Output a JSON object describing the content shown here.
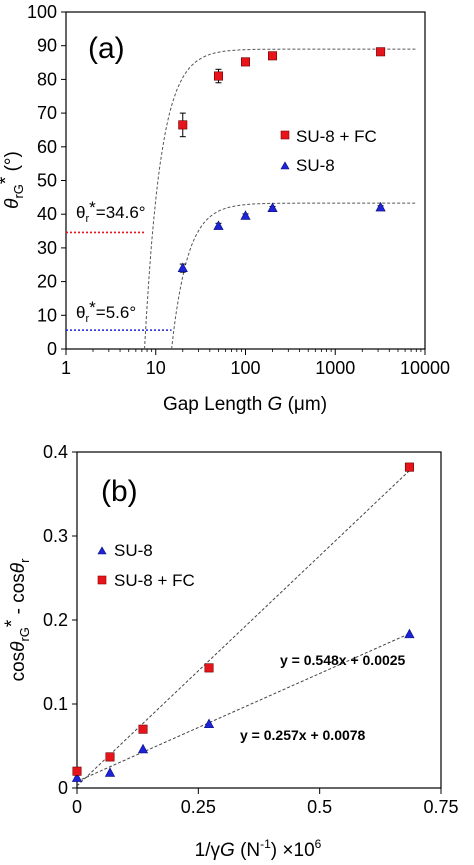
{
  "chart_data": [
    {
      "type": "scatter",
      "panel_label": "(a)",
      "xscale": "log",
      "xlim": [
        1,
        10000
      ],
      "ylim": [
        0,
        100
      ],
      "xticks": [
        "1",
        "10",
        "100",
        "1000",
        "10000"
      ],
      "yticks": [
        "0",
        "10",
        "20",
        "30",
        "40",
        "50",
        "60",
        "70",
        "80",
        "90",
        "100"
      ],
      "xlabel": "Gap Length G (μm)",
      "ylabel": "θrG* (°)",
      "grid": false,
      "legend_position": "right",
      "series": [
        {
          "name": "SU-8 + FC",
          "marker": "square",
          "color": "#e8141c",
          "x": [
            20,
            50,
            100,
            200,
            3200
          ],
          "y": [
            66.5,
            81,
            85.2,
            87,
            88.2
          ],
          "yerr": [
            3.5,
            2,
            1,
            0.6,
            0.8
          ]
        },
        {
          "name": "SU-8",
          "marker": "triangle",
          "color": "#1d23d6",
          "x": [
            20,
            50,
            100,
            200,
            3200
          ],
          "y": [
            24,
            36.5,
            39.5,
            41.8,
            42
          ],
          "yerr": [
            1.2,
            0.8,
            0.6,
            0.5,
            0.5
          ]
        }
      ],
      "fit_curves": [
        {
          "series": "SU-8 + FC",
          "plateau": 89,
          "x_intercept": 7.5
        },
        {
          "series": "SU-8",
          "plateau": 43.3,
          "x_intercept": 15
        }
      ],
      "reference_lines": [
        {
          "label": "θr*=34.6°",
          "y": 34.6,
          "color": "#e8141c"
        },
        {
          "label": "θr*=5.6°",
          "y": 5.6,
          "color": "#1d23d6"
        }
      ]
    },
    {
      "type": "scatter",
      "panel_label": "(b)",
      "xlim": [
        0,
        0.75
      ],
      "ylim": [
        0,
        0.4
      ],
      "xticks": [
        "0",
        "0.25",
        "0.5",
        "0.75"
      ],
      "yticks": [
        "0",
        "0.1",
        "0.2",
        "0.3",
        "0.4"
      ],
      "xlabel": "1/γG (N⁻¹) ×10⁶",
      "ylabel": "cosθrG* - cosθr",
      "grid": false,
      "legend_position": "upper-left",
      "series": [
        {
          "name": "SU-8",
          "marker": "triangle",
          "color": "#1d23d6",
          "x": [
            0,
            0.068,
            0.136,
            0.272,
            0.685
          ],
          "y": [
            0.012,
            0.018,
            0.046,
            0.076,
            0.183
          ]
        },
        {
          "name": "SU-8 + FC",
          "marker": "square",
          "color": "#e8141c",
          "x": [
            0,
            0.068,
            0.136,
            0.272,
            0.685
          ],
          "y": [
            0.02,
            0.037,
            0.07,
            0.143,
            0.382
          ]
        }
      ],
      "fit_lines": [
        {
          "equation": "y = 0.548x + 0.0025",
          "slope": 0.548,
          "intercept": 0.0025
        },
        {
          "equation": "y = 0.257x + 0.0078",
          "slope": 0.257,
          "intercept": 0.0078
        }
      ]
    }
  ]
}
